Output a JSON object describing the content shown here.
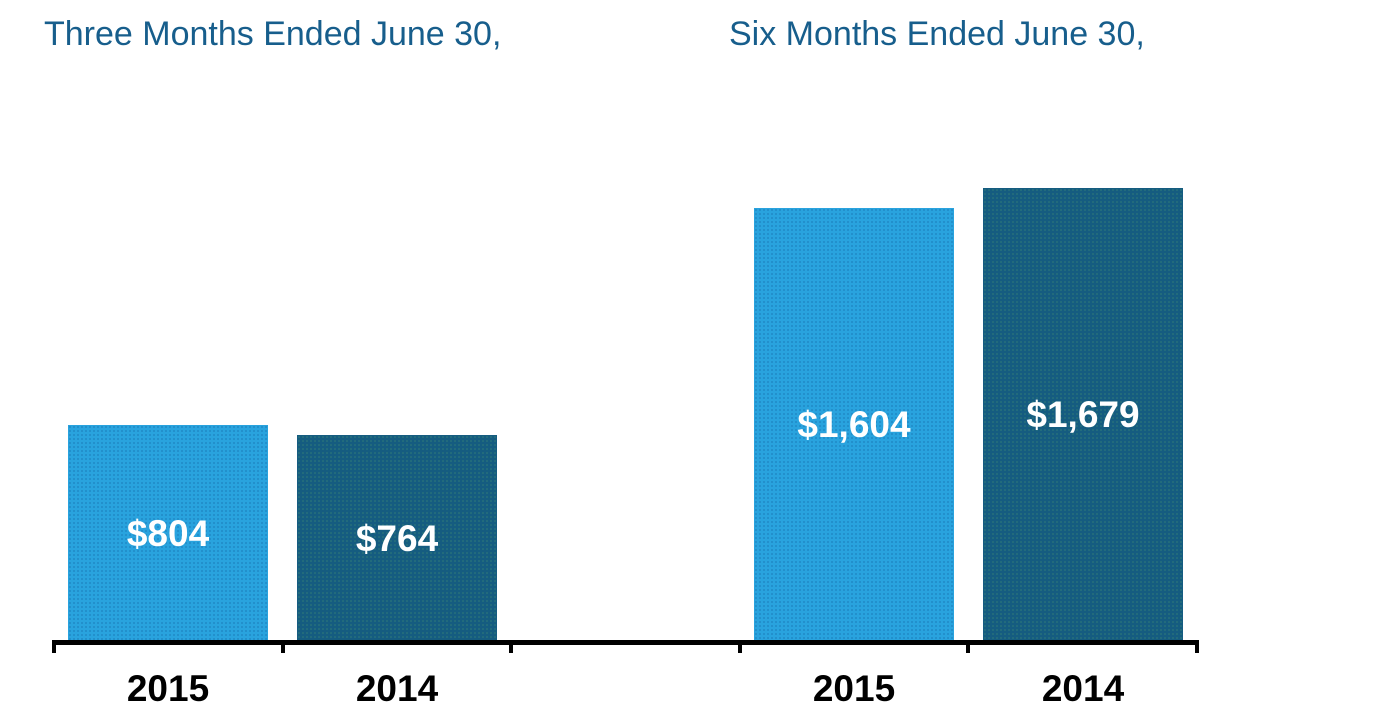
{
  "chart_data": {
    "type": "bar",
    "groups": [
      {
        "title": "Three Months Ended June 30,",
        "bars": [
          {
            "category": "2015",
            "series": "2015",
            "value": 804,
            "label": "$804"
          },
          {
            "category": "2014",
            "series": "2014",
            "value": 764,
            "label": "$764"
          }
        ]
      },
      {
        "title": "Six Months Ended June 30,",
        "bars": [
          {
            "category": "2015",
            "series": "2015",
            "value": 1604,
            "label": "$1,604"
          },
          {
            "category": "2014",
            "series": "2014",
            "value": 1679,
            "label": "$1,679"
          }
        ]
      }
    ],
    "x_axis_labels": [
      "2015",
      "2014",
      "2015",
      "2014"
    ],
    "colors": {
      "series_2015": "#29A3DE",
      "series_2014": "#155C80",
      "title_text": "#175E8C",
      "axis": "#000000",
      "value_label_text": "#FFFFFF",
      "x_axis_label_text": "#000000"
    },
    "y_axis": {
      "visible": false,
      "gridlines": false
    },
    "legend": "none",
    "value_range_implied": [
      0,
      1679
    ]
  }
}
